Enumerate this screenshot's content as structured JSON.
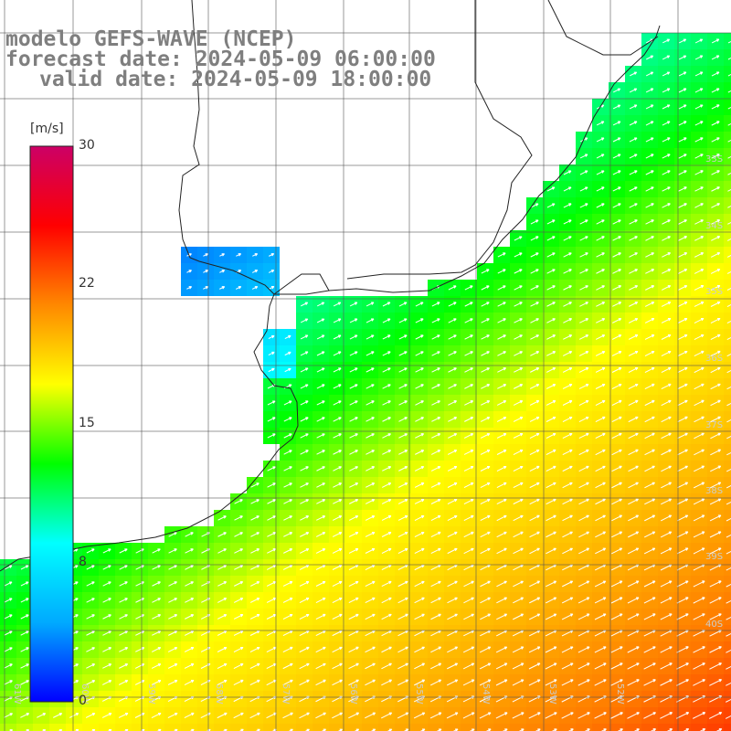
{
  "title": {
    "line1": "modelo GEFS-WAVE (NCEP)",
    "line2": "forecast date: 2024-05-09 06:00:00",
    "line3": "valid date: 2024-05-09 18:00:00"
  },
  "colorbar": {
    "unit": "[m/s]",
    "ticks": [
      "30",
      "22",
      "15",
      "8",
      "0"
    ],
    "tick_values": [
      30,
      22,
      15,
      8,
      0
    ],
    "colors": [
      "#0000ff",
      "#00aaff",
      "#00ffff",
      "#00ff00",
      "#ffff00",
      "#ff8800",
      "#ff0000",
      "#cc0066"
    ]
  },
  "latitude_labels": [
    "33S",
    "34S",
    "35S",
    "36S",
    "37S",
    "38S",
    "39S",
    "40S"
  ],
  "longitude_labels": [
    "61W",
    "60W",
    "59W",
    "58W",
    "57W",
    "56W",
    "55W",
    "54W",
    "53W",
    "52W"
  ],
  "map": {
    "ocean_color_scale": "wind speed",
    "land_color": "#ffffff",
    "grid": true
  }
}
